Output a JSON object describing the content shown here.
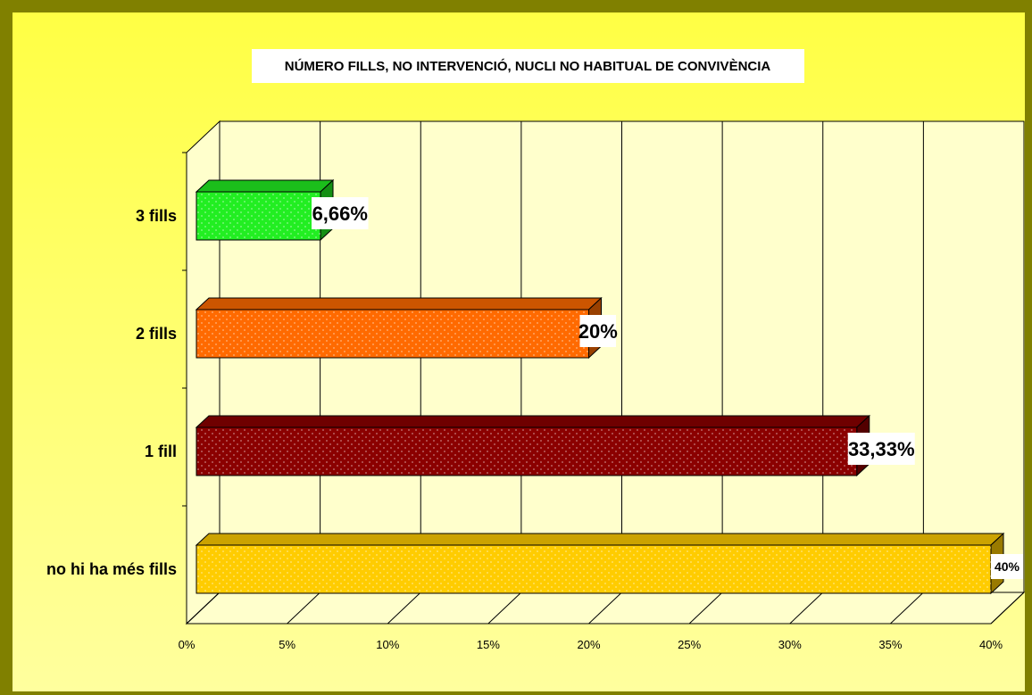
{
  "chart_data": {
    "type": "bar",
    "orientation": "horizontal",
    "title": "NÚMERO FILLS, NO INTERVENCIÓ, NUCLI NO HABITUAL DE CONVIVÈNCIA",
    "categories": [
      "3 fills",
      "2 fills",
      "1 fill",
      "no hi ha més fills"
    ],
    "values": [
      6.66,
      20,
      33.33,
      40
    ],
    "data_labels": [
      "6,66%",
      "20%",
      "33,33%",
      "40%"
    ],
    "xlim": [
      0,
      40
    ],
    "x_ticks": [
      "0%",
      "5%",
      "10%",
      "15%",
      "20%",
      "25%",
      "30%",
      "35%",
      "40%"
    ],
    "grid": true,
    "legend": "none",
    "colors": [
      "#22ee22",
      "#ff6a00",
      "#8b0000",
      "#ffcc00"
    ]
  },
  "theme": {
    "frame_color": "#808000",
    "plot_floor": "#ffffcc",
    "plot_wall": "#ffffcc"
  }
}
